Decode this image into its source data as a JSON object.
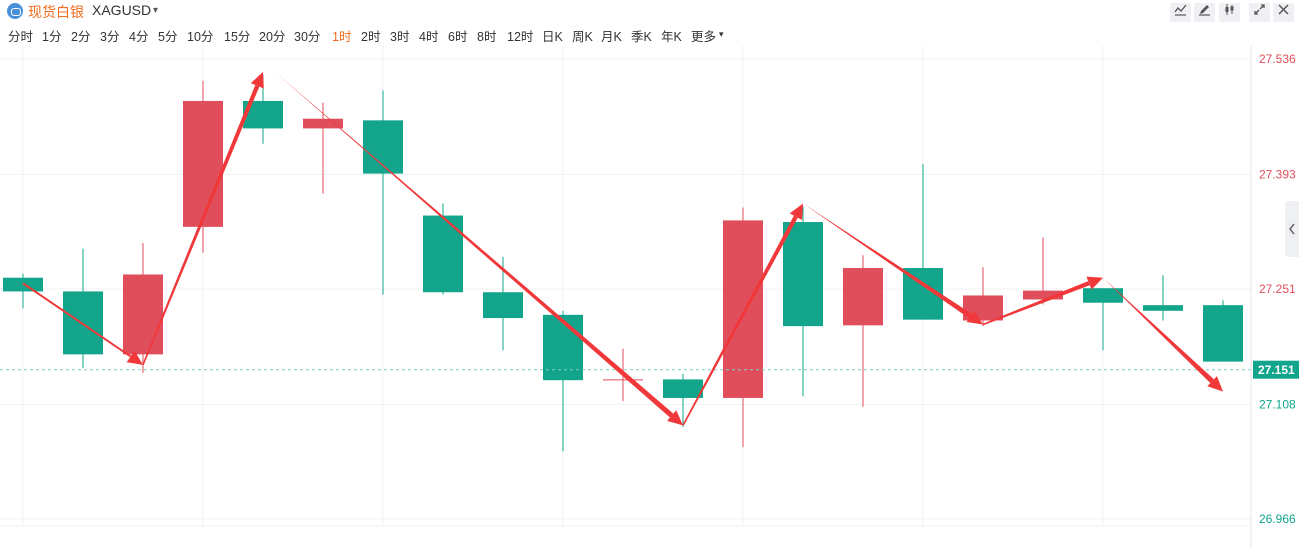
{
  "header": {
    "name_cn": "现货白银",
    "symbol": "XAGUSD",
    "dropdown_caret": "▾"
  },
  "toolbar": {
    "icons": [
      "indicator-icon",
      "draw-icon",
      "candle-style-icon",
      "fullscreen-icon",
      "close-icon"
    ]
  },
  "periods": {
    "items": [
      "分时",
      "1分",
      "2分",
      "3分",
      "4分",
      "5分",
      "10分",
      "15分",
      "20分",
      "30分",
      "1时",
      "2时",
      "3时",
      "4时",
      "6时",
      "8时",
      "12时",
      "日K",
      "周K",
      "月K",
      "季K",
      "年K",
      "更多"
    ],
    "active": "1时",
    "more_caret": "▾"
  },
  "colors": {
    "up": "#e04e5b",
    "down": "#12a58c",
    "accent": "#f26b1d",
    "arrow": "#f0383a",
    "current_price_bg": "#12a58c"
  },
  "chart_data": {
    "type": "candlestick",
    "ylim": [
      26.966,
      27.536
    ],
    "y_ticks": [
      {
        "label": "27.536",
        "value": 27.536,
        "color": "up"
      },
      {
        "label": "27.393",
        "value": 27.393,
        "color": "up"
      },
      {
        "label": "27.251",
        "value": 27.251,
        "color": "up"
      },
      {
        "label": "27.108",
        "value": 27.108,
        "color": "down"
      },
      {
        "label": "26.966",
        "value": 26.966,
        "color": "down"
      }
    ],
    "current_price": {
      "label": "27.151",
      "value": 27.151
    },
    "candles": [
      {
        "open": 27.248,
        "close": 27.265,
        "high": 27.27,
        "low": 27.227,
        "dir": "down"
      },
      {
        "open": 27.17,
        "close": 27.248,
        "high": 27.301,
        "low": 27.153,
        "dir": "down"
      },
      {
        "open": 27.17,
        "close": 27.269,
        "high": 27.308,
        "low": 27.147,
        "dir": "up"
      },
      {
        "open": 27.328,
        "close": 27.484,
        "high": 27.509,
        "low": 27.296,
        "dir": "up"
      },
      {
        "open": 27.45,
        "close": 27.484,
        "high": 27.516,
        "low": 27.431,
        "dir": "down"
      },
      {
        "open": 27.45,
        "close": 27.462,
        "high": 27.482,
        "low": 27.369,
        "dir": "up"
      },
      {
        "open": 27.394,
        "close": 27.46,
        "high": 27.497,
        "low": 27.244,
        "dir": "down"
      },
      {
        "open": 27.247,
        "close": 27.342,
        "high": 27.357,
        "low": 27.244,
        "dir": "down"
      },
      {
        "open": 27.215,
        "close": 27.247,
        "high": 27.291,
        "low": 27.175,
        "dir": "down"
      },
      {
        "open": 27.138,
        "close": 27.219,
        "high": 27.224,
        "low": 27.05,
        "dir": "down"
      },
      {
        "open": 27.139,
        "close": 27.139,
        "high": 27.177,
        "low": 27.112,
        "dir": "up"
      },
      {
        "open": 27.116,
        "close": 27.139,
        "high": 27.146,
        "low": 27.08,
        "dir": "down"
      },
      {
        "open": 27.116,
        "close": 27.336,
        "high": 27.352,
        "low": 27.055,
        "dir": "up"
      },
      {
        "open": 27.205,
        "close": 27.334,
        "high": 27.353,
        "low": 27.118,
        "dir": "down"
      },
      {
        "open": 27.206,
        "close": 27.277,
        "high": 27.293,
        "low": 27.105,
        "dir": "up"
      },
      {
        "open": 27.213,
        "close": 27.277,
        "high": 27.406,
        "low": 27.213,
        "dir": "down"
      },
      {
        "open": 27.212,
        "close": 27.243,
        "high": 27.278,
        "low": 27.205,
        "dir": "up"
      },
      {
        "open": 27.238,
        "close": 27.249,
        "high": 27.315,
        "low": 27.232,
        "dir": "up"
      },
      {
        "open": 27.234,
        "close": 27.252,
        "high": 27.252,
        "low": 27.175,
        "dir": "down"
      },
      {
        "open": 27.224,
        "close": 27.231,
        "high": 27.268,
        "low": 27.212,
        "dir": "down"
      },
      {
        "open": 27.161,
        "close": 27.231,
        "high": 27.237,
        "low": 27.161,
        "dir": "down"
      }
    ],
    "arrows": [
      {
        "from": [
          0,
          27.258
        ],
        "to": [
          2,
          27.157
        ],
        "style": "thin",
        "head": true
      },
      {
        "from": [
          2,
          27.157
        ],
        "to": [
          4,
          27.52
        ],
        "style": "thick",
        "head": true
      },
      {
        "from": [
          4.2,
          27.52
        ],
        "to": [
          11,
          27.082
        ],
        "style": "taper",
        "head": true
      },
      {
        "from": [
          11,
          27.082
        ],
        "to": [
          13,
          27.357
        ],
        "style": "thick",
        "head": true
      },
      {
        "from": [
          13,
          27.357
        ],
        "to": [
          16,
          27.207
        ],
        "style": "taper",
        "head": true
      },
      {
        "from": [
          16,
          27.207
        ],
        "to": [
          18,
          27.265
        ],
        "style": "thick",
        "head": true
      },
      {
        "from": [
          18,
          27.265
        ],
        "to": [
          20,
          27.124
        ],
        "style": "taper",
        "head": true
      }
    ]
  }
}
